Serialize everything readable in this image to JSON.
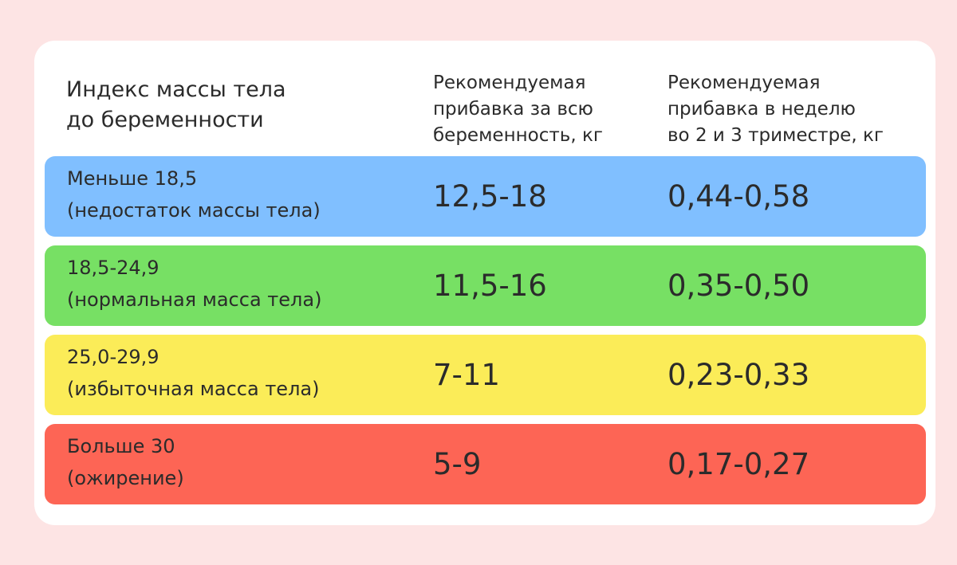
{
  "header": {
    "col1": "Индекс массы тела\nдо беременности",
    "col2": "Рекомендуемая\nприбавка за всю\nбеременность, кг",
    "col3": "Рекомендуемая\nприбавка в неделю\nво 2 и 3 триместре, кг"
  },
  "rows": [
    {
      "bmi": "Меньше 18,5",
      "category": "(недостаток массы тела)",
      "total_gain": "12,5-18",
      "weekly_gain": "0,44-0,58",
      "color": "#80bfff"
    },
    {
      "bmi": "18,5-24,9",
      "category": "(нормальная масса тела)",
      "total_gain": "11,5-16",
      "weekly_gain": "0,35-0,50",
      "color": "#77e064"
    },
    {
      "bmi": "25,0-29,9",
      "category": "(избыточная масса тела)",
      "total_gain": "7-11",
      "weekly_gain": "0,23-0,33",
      "color": "#fbec58"
    },
    {
      "bmi": "Больше 30",
      "category": "(ожирение)",
      "total_gain": "5-9",
      "weekly_gain": "0,17-0,27",
      "color": "#fd6555"
    }
  ],
  "colors": {
    "background": "#fde4e4",
    "card": "#ffffff",
    "text": "#2b2b2b"
  }
}
